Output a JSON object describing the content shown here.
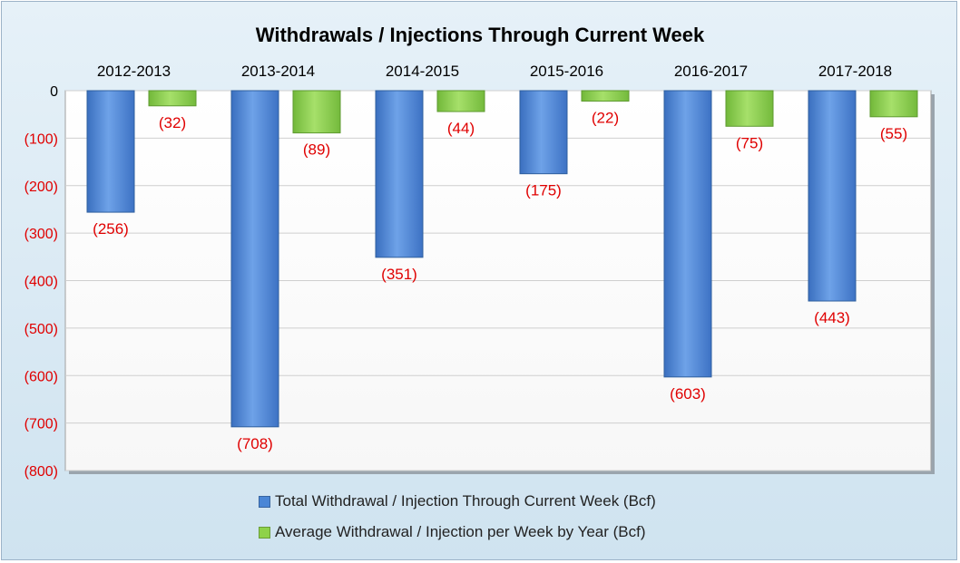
{
  "chart_data": {
    "type": "bar",
    "title": "Withdrawals / Injections Through Current Week",
    "categories": [
      "2012-2013",
      "2013-2014",
      "2014-2015",
      "2015-2016",
      "2016-2017",
      "2017-2018"
    ],
    "series": [
      {
        "name": "Total Withdrawal / Injection Through Current Week (Bcf)",
        "values": [
          -256,
          -708,
          -351,
          -175,
          -603,
          -443
        ],
        "data_labels": [
          "(256)",
          "(708)",
          "(351)",
          "(175)",
          "(603)",
          "(443)"
        ],
        "color": "#4a86d6"
      },
      {
        "name": "Average Withdrawal / Injection per Week by Year (Bcf)",
        "values": [
          -32,
          -89,
          -44,
          -22,
          -75,
          -55
        ],
        "data_labels": [
          "(32)",
          "(89)",
          "(44)",
          "(22)",
          "(75)",
          "(55)"
        ],
        "color": "#8ed24a"
      }
    ],
    "y_ticks": [
      0,
      -100,
      -200,
      -300,
      -400,
      -500,
      -600,
      -700,
      -800
    ],
    "y_tick_labels": [
      "0",
      "(100)",
      "(200)",
      "(300)",
      "(400)",
      "(500)",
      "(600)",
      "(700)",
      "(800)"
    ],
    "ylim": [
      -800,
      0
    ],
    "xlabel": "",
    "ylabel": "",
    "grid": true,
    "legend_position": "bottom",
    "category_labels_position": "top",
    "label_color": "#e00000",
    "background_color": "#dcebf5",
    "plot_background": "#ffffff"
  }
}
